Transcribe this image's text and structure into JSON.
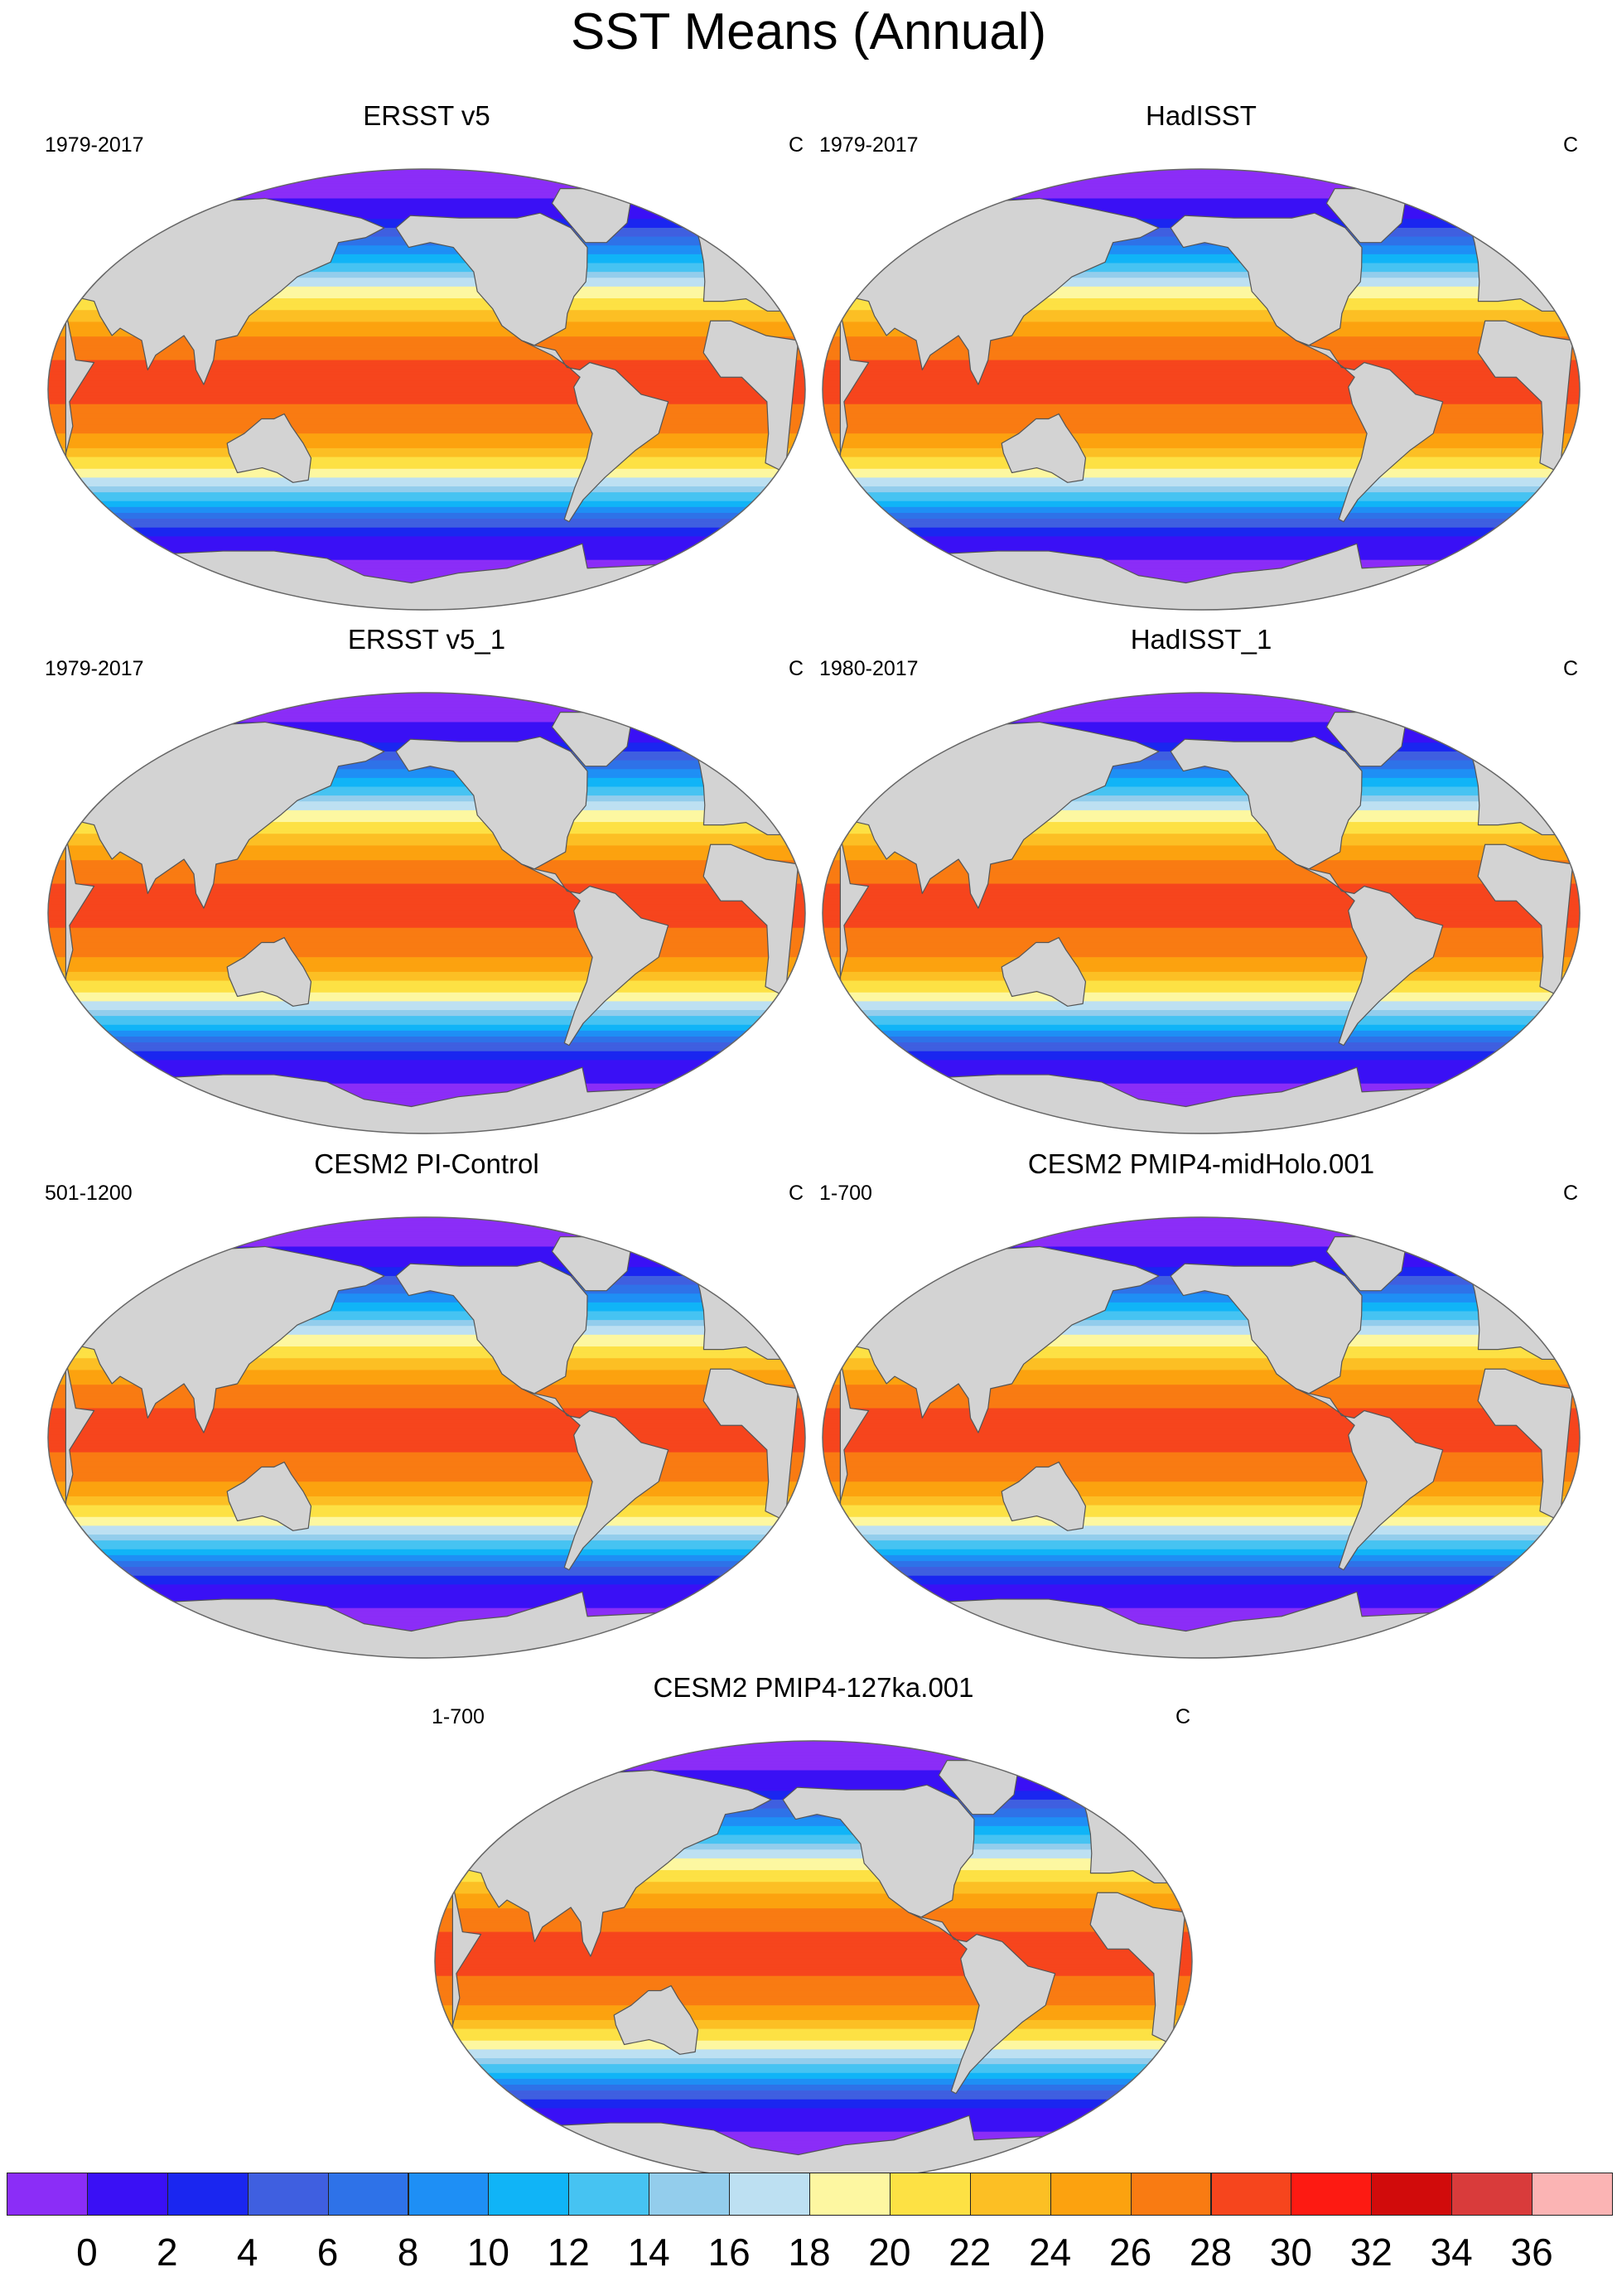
{
  "figure": {
    "title": "SST Means (Annual)",
    "units": "C"
  },
  "panels": [
    {
      "title": "ERSST v5",
      "period": "1979-2017",
      "units": "C"
    },
    {
      "title": "HadISST",
      "period": "1979-2017",
      "units": "C"
    },
    {
      "title": "ERSST v5_1",
      "period": "1979-2017",
      "units": "C"
    },
    {
      "title": "HadISST_1",
      "period": "1980-2017",
      "units": "C"
    },
    {
      "title": "CESM2 PI-Control",
      "period": "501-1200",
      "units": "C"
    },
    {
      "title": "CESM2 PMIP4-midHolo.001",
      "period": "1-700",
      "units": "C"
    },
    {
      "title": "CESM2 PMIP4-127ka.001",
      "period": "1-700",
      "units": "C"
    }
  ],
  "colorbar": {
    "colors": [
      "#8b2df7",
      "#3a10f5",
      "#1a26f0",
      "#3f5fe0",
      "#2e72e8",
      "#1e8ff5",
      "#10b4f7",
      "#46c3f2",
      "#93cdec",
      "#bde0f2",
      "#fdf7a1",
      "#fde144",
      "#fcbf24",
      "#fca20f",
      "#f97b12",
      "#f6451d",
      "#fd1a12",
      "#d10b0b",
      "#d93b3b",
      "#fbb4b4"
    ],
    "labels": [
      "0",
      "2",
      "4",
      "6",
      "8",
      "10",
      "12",
      "14",
      "16",
      "18",
      "20",
      "22",
      "24",
      "26",
      "28",
      "30",
      "32",
      "34",
      "36"
    ]
  },
  "map_colors": {
    "land": "#d3d3d3",
    "coast": "#555555",
    "outline": "#666666"
  }
}
